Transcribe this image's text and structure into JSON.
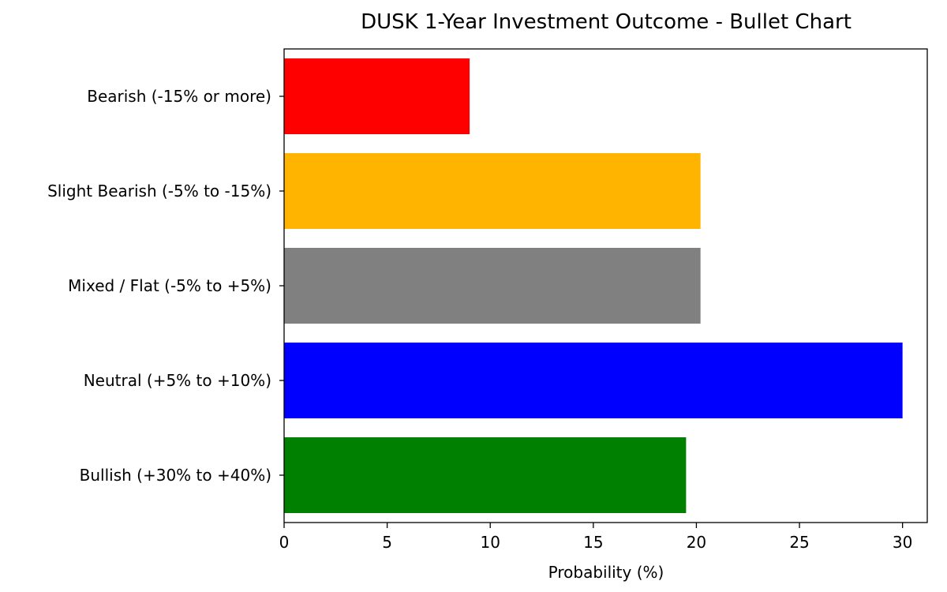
{
  "chart_data": {
    "type": "bar",
    "orientation": "horizontal",
    "title": "DUSK 1-Year Investment Outcome - Bullet Chart",
    "xlabel": "Probability (%)",
    "ylabel": "",
    "xlim": [
      0,
      31.2
    ],
    "xticks": [
      0,
      5,
      10,
      15,
      20,
      25,
      30
    ],
    "grid": false,
    "categories": [
      "Bearish (-15% or more)",
      "Slight Bearish (-5% to -15%)",
      "Mixed / Flat (-5% to +5%)",
      "Neutral (+5% to +10%)",
      "Bullish (+30% to +40%)"
    ],
    "values": [
      9,
      20.2,
      20.2,
      30,
      19.5
    ],
    "colors": [
      "#ff0000",
      "#ffb400",
      "#808080",
      "#0000ff",
      "#008000"
    ]
  }
}
